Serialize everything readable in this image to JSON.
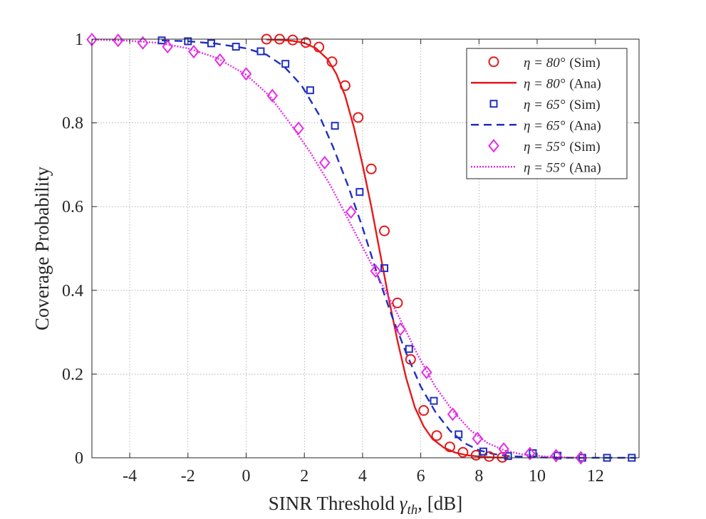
{
  "chart_data": {
    "type": "line",
    "title": "",
    "xlabel": "SINR Threshold γth, [dB]",
    "xlabel_parts": {
      "main": "SINR Threshold ",
      "symbol": "γ",
      "sub": "th",
      "suffix": ", [dB]"
    },
    "ylabel": "Coverage Probability",
    "xlim": [
      -5.3,
      13.5
    ],
    "ylim": [
      0,
      1
    ],
    "xticks": [
      -4,
      -2,
      0,
      2,
      4,
      6,
      8,
      10,
      12
    ],
    "yticks": [
      0,
      0.2,
      0.4,
      0.6,
      0.8,
      1
    ],
    "ytick_labels": [
      "0",
      "0.2",
      "0.4",
      "0.6",
      "0.8",
      "1"
    ],
    "grid": true,
    "legend_position": "top-right",
    "series": [
      {
        "name": "η = 80° (Sim)",
        "label_main": "η = 80°",
        "label_tag": "(Sim)",
        "color": "#e31a1c",
        "style": "marker",
        "marker": "circle",
        "x": [
          0.7,
          1.15,
          1.6,
          2.05,
          2.5,
          2.95,
          3.4,
          3.85,
          4.3,
          4.75,
          5.2,
          5.65,
          6.1,
          6.55,
          7.0,
          7.45,
          7.9,
          8.35,
          8.8
        ],
        "y": [
          1.0,
          1.0,
          0.998,
          0.992,
          0.981,
          0.946,
          0.889,
          0.813,
          0.69,
          0.542,
          0.37,
          0.235,
          0.113,
          0.053,
          0.026,
          0.013,
          0.006,
          0.003,
          0.001
        ]
      },
      {
        "name": "η = 80° (Ana)",
        "label_main": "η = 80°",
        "label_tag": "(Ana)",
        "color": "#e31a1c",
        "style": "solid",
        "marker": "none",
        "x": [
          0.7,
          1.2,
          1.6,
          2.0,
          2.4,
          2.8,
          3.1,
          3.4,
          3.7,
          4.0,
          4.3,
          4.6,
          4.9,
          5.2,
          5.5,
          5.8,
          6.1,
          6.4,
          6.8,
          7.2,
          7.6,
          8.0,
          8.5,
          9.0
        ],
        "y": [
          0.999,
          0.998,
          0.996,
          0.991,
          0.978,
          0.952,
          0.917,
          0.865,
          0.79,
          0.7,
          0.6,
          0.49,
          0.38,
          0.28,
          0.19,
          0.12,
          0.075,
          0.045,
          0.024,
          0.012,
          0.006,
          0.003,
          0.001,
          0.0
        ]
      },
      {
        "name": "η = 65° (Sim)",
        "label_main": "η = 65°",
        "label_tag": "(Sim)",
        "color": "#1f2fbf",
        "style": "marker",
        "marker": "square",
        "x": [
          -2.9,
          -2.0,
          -1.2,
          -0.35,
          0.5,
          1.35,
          2.2,
          3.05,
          3.9,
          4.75,
          5.6,
          6.45,
          7.3,
          8.15,
          9.0,
          9.85,
          10.7,
          11.55,
          12.4,
          13.25
        ],
        "y": [
          0.997,
          0.995,
          0.99,
          0.982,
          0.971,
          0.941,
          0.878,
          0.793,
          0.635,
          0.453,
          0.26,
          0.136,
          0.056,
          0.015,
          0.004,
          0.011,
          0.005,
          0.0,
          0.0,
          0.0
        ]
      },
      {
        "name": "η = 65° (Ana)",
        "label_main": "η = 65°",
        "label_tag": "(Ana)",
        "color": "#1f2fbf",
        "style": "dashed",
        "marker": "none",
        "x": [
          -2.9,
          -2.0,
          -1.0,
          0.0,
          0.7,
          1.3,
          1.9,
          2.5,
          3.0,
          3.5,
          4.0,
          4.5,
          5.0,
          5.5,
          6.0,
          6.5,
          7.0,
          7.5,
          8.0,
          8.5,
          9.0,
          10.0,
          11.0,
          12.0,
          13.4
        ],
        "y": [
          0.997,
          0.995,
          0.989,
          0.978,
          0.963,
          0.935,
          0.89,
          0.82,
          0.74,
          0.65,
          0.55,
          0.44,
          0.34,
          0.25,
          0.17,
          0.11,
          0.065,
          0.035,
          0.018,
          0.009,
          0.004,
          0.001,
          0.0,
          0.0,
          0.0
        ]
      },
      {
        "name": "η = 55° (Sim)",
        "label_main": "η = 55°",
        "label_tag": "(Sim)",
        "color": "#e52ce5",
        "style": "marker",
        "marker": "diamond",
        "x": [
          -5.3,
          -4.4,
          -3.55,
          -2.7,
          -1.8,
          -0.9,
          0.0,
          0.9,
          1.8,
          2.7,
          3.6,
          4.45,
          5.3,
          6.2,
          7.1,
          7.95,
          8.85,
          9.75,
          10.65,
          11.5
        ],
        "y": [
          0.999,
          0.997,
          0.991,
          0.982,
          0.97,
          0.95,
          0.917,
          0.865,
          0.787,
          0.705,
          0.587,
          0.446,
          0.307,
          0.204,
          0.104,
          0.046,
          0.021,
          0.01,
          0.005,
          0.0
        ]
      },
      {
        "name": "η = 55° (Ana)",
        "label_main": "η = 55°",
        "label_tag": "(Ana)",
        "color": "#e52ce5",
        "style": "dotted",
        "marker": "none",
        "x": [
          -5.3,
          -4.0,
          -3.0,
          -2.0,
          -1.0,
          0.0,
          0.8,
          1.5,
          2.2,
          2.9,
          3.5,
          4.1,
          4.7,
          5.3,
          5.9,
          6.5,
          7.1,
          7.7,
          8.3,
          8.9,
          9.5,
          10.3,
          11.0,
          11.6
        ],
        "y": [
          0.999,
          0.996,
          0.991,
          0.978,
          0.955,
          0.915,
          0.865,
          0.8,
          0.73,
          0.65,
          0.57,
          0.49,
          0.41,
          0.33,
          0.245,
          0.17,
          0.112,
          0.066,
          0.035,
          0.017,
          0.008,
          0.003,
          0.001,
          0.0
        ]
      }
    ]
  }
}
